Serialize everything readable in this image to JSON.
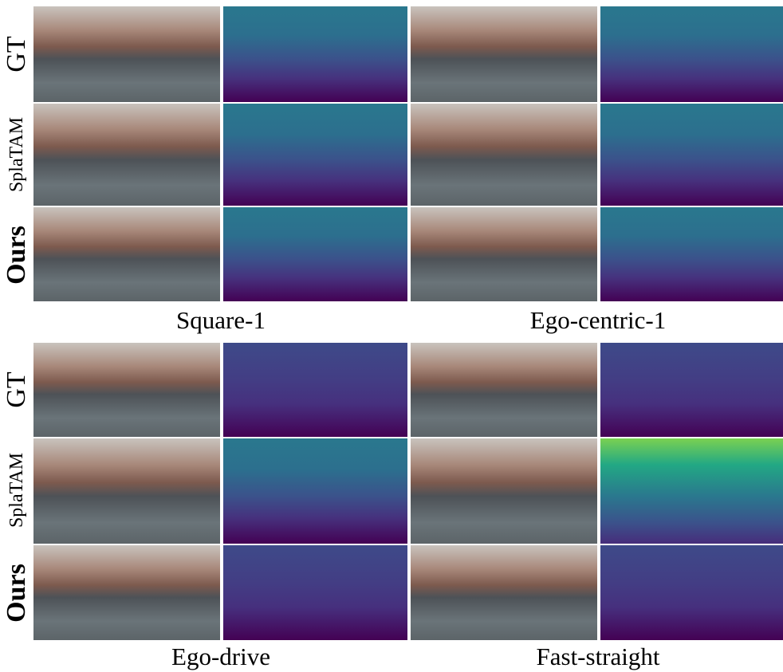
{
  "groups": [
    {
      "row_labels": [
        "GT",
        "SplaTAM",
        "Ours"
      ],
      "captions": [
        "Square-1",
        "Ego-centric-1"
      ]
    },
    {
      "row_labels": [
        "GT",
        "SplaTAM",
        "Ours"
      ],
      "captions": [
        "Ego-drive",
        "Fast-straight"
      ]
    }
  ]
}
